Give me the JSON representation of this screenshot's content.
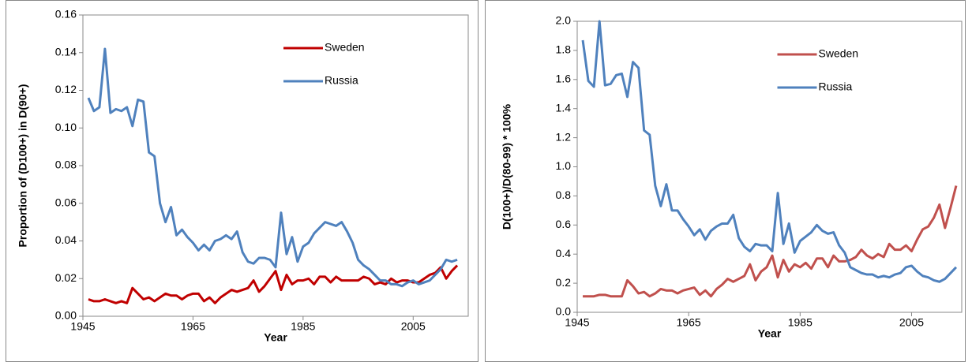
{
  "chart_data": [
    {
      "type": "line",
      "x_label": "Year",
      "y_label": "Proportion of (D100+) in D(90+)",
      "x": [
        1946,
        1947,
        1948,
        1949,
        1950,
        1951,
        1952,
        1953,
        1954,
        1955,
        1956,
        1957,
        1958,
        1959,
        1960,
        1961,
        1962,
        1963,
        1964,
        1965,
        1966,
        1967,
        1968,
        1969,
        1970,
        1971,
        1972,
        1973,
        1974,
        1975,
        1976,
        1977,
        1978,
        1979,
        1980,
        1981,
        1982,
        1983,
        1984,
        1985,
        1986,
        1987,
        1988,
        1989,
        1990,
        1991,
        1992,
        1993,
        1994,
        1995,
        1996,
        1997,
        1998,
        1999,
        2000,
        2001,
        2002,
        2003,
        2004,
        2005,
        2006,
        2007,
        2008,
        2009,
        2010,
        2011,
        2012,
        2013
      ],
      "series": [
        {
          "name": "Sweden",
          "color": "#c00000",
          "values": [
            0.009,
            0.008,
            0.008,
            0.009,
            0.008,
            0.007,
            0.008,
            0.007,
            0.015,
            0.012,
            0.009,
            0.01,
            0.008,
            0.01,
            0.012,
            0.011,
            0.011,
            0.009,
            0.011,
            0.012,
            0.012,
            0.008,
            0.01,
            0.007,
            0.01,
            0.012,
            0.014,
            0.013,
            0.014,
            0.015,
            0.019,
            0.013,
            0.016,
            0.02,
            0.024,
            0.014,
            0.022,
            0.017,
            0.019,
            0.019,
            0.02,
            0.017,
            0.021,
            0.021,
            0.018,
            0.021,
            0.019,
            0.019,
            0.019,
            0.019,
            0.021,
            0.02,
            0.017,
            0.018,
            0.017,
            0.02,
            0.018,
            0.019,
            0.019,
            0.018,
            0.018,
            0.02,
            0.022,
            0.023,
            0.026,
            0.02,
            0.024,
            0.027
          ]
        },
        {
          "name": "Russia",
          "color": "#4f81bd",
          "values": [
            0.116,
            0.109,
            0.111,
            0.142,
            0.108,
            0.11,
            0.109,
            0.111,
            0.101,
            0.115,
            0.114,
            0.087,
            0.085,
            0.06,
            0.05,
            0.058,
            0.043,
            0.046,
            0.042,
            0.039,
            0.035,
            0.038,
            0.035,
            0.04,
            0.041,
            0.043,
            0.041,
            0.045,
            0.034,
            0.029,
            0.028,
            0.031,
            0.031,
            0.03,
            0.026,
            0.055,
            0.033,
            0.042,
            0.029,
            0.037,
            0.039,
            0.044,
            0.047,
            0.05,
            0.049,
            0.048,
            0.05,
            0.045,
            0.039,
            0.03,
            0.027,
            0.025,
            0.022,
            0.019,
            0.019,
            0.017,
            0.017,
            0.016,
            0.018,
            0.019,
            0.017,
            0.018,
            0.019,
            0.022,
            0.025,
            0.03,
            0.029,
            0.03
          ]
        }
      ],
      "xlim": [
        1945,
        2015
      ],
      "xticks": [
        1945,
        1965,
        1985,
        2005
      ],
      "ylim": [
        0,
        0.16
      ],
      "yticks": [
        {
          "value": 0,
          "label": "0.00"
        },
        {
          "value": 0.02,
          "label": "0.02"
        },
        {
          "value": 0.04,
          "label": "0.04"
        },
        {
          "value": 0.06,
          "label": "0.06"
        },
        {
          "value": 0.08,
          "label": "0.08"
        },
        {
          "value": 0.1,
          "label": "0.10"
        },
        {
          "value": 0.12,
          "label": "0.12"
        },
        {
          "value": 0.14,
          "label": "0.14"
        },
        {
          "value": 0.16,
          "label": "0.16"
        }
      ],
      "grid": false,
      "legend": "upper center"
    },
    {
      "type": "line",
      "x_label": "Year",
      "y_label": "D(100+)/D(80-99) * 100%",
      "x": [
        1946,
        1947,
        1948,
        1949,
        1950,
        1951,
        1952,
        1953,
        1954,
        1955,
        1956,
        1957,
        1958,
        1959,
        1960,
        1961,
        1962,
        1963,
        1964,
        1965,
        1966,
        1967,
        1968,
        1969,
        1970,
        1971,
        1972,
        1973,
        1974,
        1975,
        1976,
        1977,
        1978,
        1979,
        1980,
        1981,
        1982,
        1983,
        1984,
        1985,
        1986,
        1987,
        1988,
        1989,
        1990,
        1991,
        1992,
        1993,
        1994,
        1995,
        1996,
        1997,
        1998,
        1999,
        2000,
        2001,
        2002,
        2003,
        2004,
        2005,
        2006,
        2007,
        2008,
        2009,
        2010,
        2011,
        2012,
        2013
      ],
      "series": [
        {
          "name": "Sweden",
          "color": "#c0504d",
          "values": [
            0.11,
            0.11,
            0.11,
            0.12,
            0.12,
            0.11,
            0.11,
            0.11,
            0.22,
            0.18,
            0.13,
            0.14,
            0.11,
            0.13,
            0.16,
            0.15,
            0.15,
            0.13,
            0.15,
            0.16,
            0.17,
            0.12,
            0.15,
            0.11,
            0.16,
            0.19,
            0.23,
            0.21,
            0.23,
            0.25,
            0.33,
            0.22,
            0.28,
            0.31,
            0.39,
            0.24,
            0.36,
            0.28,
            0.33,
            0.31,
            0.34,
            0.3,
            0.37,
            0.37,
            0.31,
            0.39,
            0.35,
            0.35,
            0.36,
            0.38,
            0.43,
            0.39,
            0.37,
            0.4,
            0.38,
            0.47,
            0.43,
            0.43,
            0.46,
            0.42,
            0.5,
            0.57,
            0.59,
            0.65,
            0.74,
            0.58,
            0.72,
            0.87
          ]
        },
        {
          "name": "Russia",
          "color": "#4f81bd",
          "values": [
            1.87,
            1.59,
            1.55,
            2.0,
            1.56,
            1.57,
            1.63,
            1.64,
            1.48,
            1.72,
            1.68,
            1.25,
            1.22,
            0.87,
            0.73,
            0.88,
            0.7,
            0.7,
            0.64,
            0.59,
            0.53,
            0.57,
            0.5,
            0.56,
            0.59,
            0.61,
            0.61,
            0.67,
            0.51,
            0.45,
            0.42,
            0.47,
            0.46,
            0.46,
            0.42,
            0.82,
            0.47,
            0.61,
            0.41,
            0.49,
            0.52,
            0.55,
            0.6,
            0.56,
            0.54,
            0.55,
            0.46,
            0.41,
            0.31,
            0.29,
            0.27,
            0.26,
            0.26,
            0.24,
            0.25,
            0.24,
            0.26,
            0.27,
            0.31,
            0.32,
            0.28,
            0.25,
            0.24,
            0.22,
            0.21,
            0.23,
            0.27,
            0.31
          ]
        }
      ],
      "xlim": [
        1945,
        2014
      ],
      "xticks": [
        1945,
        1965,
        1985,
        2005
      ],
      "ylim": [
        0,
        2.0
      ],
      "yticks": [
        {
          "value": 0,
          "label": "0.0"
        },
        {
          "value": 0.2,
          "label": "0.2"
        },
        {
          "value": 0.4,
          "label": "0.4"
        },
        {
          "value": 0.6,
          "label": "0.6"
        },
        {
          "value": 0.8,
          "label": "0.8"
        },
        {
          "value": 1.0,
          "label": "1.0"
        },
        {
          "value": 1.2,
          "label": "1.2"
        },
        {
          "value": 1.4,
          "label": "1.4"
        },
        {
          "value": 1.6,
          "label": "1.6"
        },
        {
          "value": 1.8,
          "label": "1.8"
        },
        {
          "value": 2.0,
          "label": "2.0"
        }
      ],
      "grid": false,
      "legend": "upper center"
    }
  ]
}
